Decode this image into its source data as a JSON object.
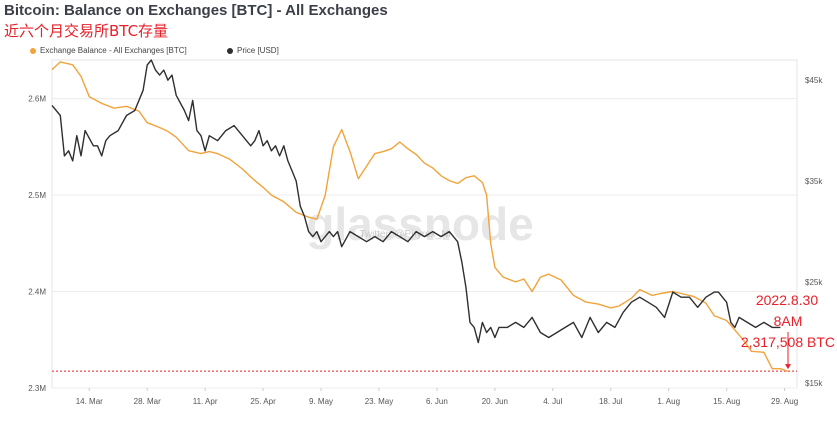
{
  "title": "Bitcoin: Balance on Exchanges [BTC] - All Exchanges",
  "subtitle": "近六个月交易所BTC存量",
  "watermark": "glassnode",
  "watermark_handle": "Twitter: @Phyrex_Ni",
  "annotation": {
    "date": "2022.8.30",
    "time": "8AM",
    "value": "2,317,508 BTC",
    "color": "#e8202a"
  },
  "colors": {
    "balance": "#f2a33a",
    "price": "#2f2f2f",
    "annotation": "#e8202a"
  },
  "chart_data": {
    "type": "line",
    "legend_position": "top-left",
    "x_ticks": [
      "14. Mar",
      "28. Mar",
      "11. Apr",
      "25. Apr",
      "9. May",
      "23. May",
      "6. Jun",
      "20. Jun",
      "4. Jul",
      "18. Jul",
      "1. Aug",
      "15. Aug",
      "29. Aug"
    ],
    "x_tick_positions": [
      9,
      23,
      37,
      51,
      65,
      79,
      93,
      107,
      121,
      135,
      149,
      163,
      177
    ],
    "x_range": [
      0,
      180
    ],
    "y_left": {
      "ticks": [
        "2.3M",
        "2.4M",
        "2.5M",
        "2.6M"
      ],
      "values": [
        2.3,
        2.4,
        2.5,
        2.6
      ],
      "range": [
        2.3,
        2.64
      ],
      "unit": "M BTC"
    },
    "y_right": {
      "ticks": [
        "$15k",
        "$25k",
        "$35k",
        "$45k"
      ],
      "values": [
        15,
        25,
        35,
        45
      ],
      "range": [
        14.5,
        47
      ],
      "unit": "k USD"
    },
    "series": [
      {
        "name": "Exchange Balance - All Exchanges [BTC]",
        "axis": "left",
        "points": [
          [
            0,
            2.63
          ],
          [
            2,
            2.638
          ],
          [
            5,
            2.635
          ],
          [
            7,
            2.623
          ],
          [
            9,
            2.602
          ],
          [
            12,
            2.595
          ],
          [
            15,
            2.59
          ],
          [
            18,
            2.592
          ],
          [
            21,
            2.587
          ],
          [
            23,
            2.575
          ],
          [
            26,
            2.57
          ],
          [
            28,
            2.566
          ],
          [
            30,
            2.56
          ],
          [
            33,
            2.546
          ],
          [
            36,
            2.543
          ],
          [
            38,
            2.545
          ],
          [
            40,
            2.543
          ],
          [
            43,
            2.537
          ],
          [
            46,
            2.527
          ],
          [
            49,
            2.515
          ],
          [
            51,
            2.508
          ],
          [
            53,
            2.5
          ],
          [
            56,
            2.493
          ],
          [
            59,
            2.482
          ],
          [
            62,
            2.477
          ],
          [
            64,
            2.475
          ],
          [
            66,
            2.5
          ],
          [
            68,
            2.55
          ],
          [
            70,
            2.568
          ],
          [
            72,
            2.545
          ],
          [
            74,
            2.517
          ],
          [
            76,
            2.53
          ],
          [
            78,
            2.543
          ],
          [
            80,
            2.545
          ],
          [
            82,
            2.548
          ],
          [
            84,
            2.555
          ],
          [
            86,
            2.548
          ],
          [
            88,
            2.542
          ],
          [
            90,
            2.533
          ],
          [
            92,
            2.528
          ],
          [
            94,
            2.52
          ],
          [
            96,
            2.515
          ],
          [
            98,
            2.512
          ],
          [
            100,
            2.518
          ],
          [
            102,
            2.52
          ],
          [
            104,
            2.513
          ],
          [
            105,
            2.5
          ],
          [
            106,
            2.45
          ],
          [
            107,
            2.425
          ],
          [
            109,
            2.415
          ],
          [
            112,
            2.41
          ],
          [
            114,
            2.413
          ],
          [
            116,
            2.4
          ],
          [
            118,
            2.415
          ],
          [
            120,
            2.418
          ],
          [
            123,
            2.412
          ],
          [
            126,
            2.396
          ],
          [
            129,
            2.389
          ],
          [
            132,
            2.387
          ],
          [
            135,
            2.383
          ],
          [
            137,
            2.385
          ],
          [
            140,
            2.393
          ],
          [
            142,
            2.402
          ],
          [
            145,
            2.396
          ],
          [
            147,
            2.398
          ],
          [
            150,
            2.4
          ],
          [
            152,
            2.398
          ],
          [
            155,
            2.395
          ],
          [
            158,
            2.388
          ],
          [
            160,
            2.375
          ],
          [
            163,
            2.37
          ],
          [
            165,
            2.36
          ],
          [
            167,
            2.35
          ],
          [
            169,
            2.338
          ],
          [
            172,
            2.337
          ],
          [
            174,
            2.32
          ],
          [
            176,
            2.32
          ],
          [
            178,
            2.317
          ]
        ]
      },
      {
        "name": "Price [USD]",
        "axis": "right",
        "points": [
          [
            0,
            42.5
          ],
          [
            2,
            41.5
          ],
          [
            3,
            37.5
          ],
          [
            4,
            38
          ],
          [
            5,
            37
          ],
          [
            6,
            39.5
          ],
          [
            7,
            37.5
          ],
          [
            8,
            40
          ],
          [
            10,
            38.5
          ],
          [
            11,
            38.5
          ],
          [
            12,
            37.5
          ],
          [
            13,
            39
          ],
          [
            14,
            39.5
          ],
          [
            16,
            40
          ],
          [
            18,
            41.5
          ],
          [
            20,
            42
          ],
          [
            22,
            44
          ],
          [
            23,
            46.5
          ],
          [
            24,
            47
          ],
          [
            25,
            46
          ],
          [
            26,
            45.5
          ],
          [
            27,
            46
          ],
          [
            28,
            45
          ],
          [
            29,
            45.5
          ],
          [
            30,
            43.5
          ],
          [
            32,
            42
          ],
          [
            33,
            41
          ],
          [
            34,
            43
          ],
          [
            35,
            40
          ],
          [
            36,
            39.5
          ],
          [
            37,
            38
          ],
          [
            38,
            39.5
          ],
          [
            40,
            39
          ],
          [
            42,
            40
          ],
          [
            44,
            40.5
          ],
          [
            46,
            39.5
          ],
          [
            48,
            38.5
          ],
          [
            49,
            39
          ],
          [
            50,
            40
          ],
          [
            51,
            38.5
          ],
          [
            52,
            39
          ],
          [
            53,
            38
          ],
          [
            54,
            38.5
          ],
          [
            55,
            37.5
          ],
          [
            56,
            38.5
          ],
          [
            57,
            37
          ],
          [
            58,
            36
          ],
          [
            59,
            35
          ],
          [
            60,
            32.5
          ],
          [
            61,
            31.5
          ],
          [
            62,
            30
          ],
          [
            63,
            29.5
          ],
          [
            64,
            30
          ],
          [
            65,
            29
          ],
          [
            66,
            29.5
          ],
          [
            67,
            30
          ],
          [
            68,
            29.5
          ],
          [
            69,
            30
          ],
          [
            70,
            28.5
          ],
          [
            72,
            30
          ],
          [
            74,
            29.5
          ],
          [
            76,
            29
          ],
          [
            78,
            29.5
          ],
          [
            80,
            29
          ],
          [
            82,
            30
          ],
          [
            84,
            29.5
          ],
          [
            86,
            29
          ],
          [
            88,
            30
          ],
          [
            90,
            29.5
          ],
          [
            92,
            30
          ],
          [
            94,
            29.5
          ],
          [
            96,
            30
          ],
          [
            98,
            29
          ],
          [
            99,
            27
          ],
          [
            100,
            24.5
          ],
          [
            101,
            21
          ],
          [
            102,
            20.5
          ],
          [
            103,
            19
          ],
          [
            104,
            21
          ],
          [
            105,
            20
          ],
          [
            106,
            20.5
          ],
          [
            107,
            19.5
          ],
          [
            108,
            20.5
          ],
          [
            110,
            20.5
          ],
          [
            112,
            21
          ],
          [
            114,
            20.5
          ],
          [
            116,
            21.5
          ],
          [
            118,
            20
          ],
          [
            120,
            19.5
          ],
          [
            122,
            20
          ],
          [
            124,
            20.5
          ],
          [
            126,
            21
          ],
          [
            128,
            19.5
          ],
          [
            130,
            21.5
          ],
          [
            132,
            20
          ],
          [
            134,
            21
          ],
          [
            136,
            20.5
          ],
          [
            138,
            22
          ],
          [
            140,
            23
          ],
          [
            142,
            23.5
          ],
          [
            144,
            23
          ],
          [
            146,
            22.5
          ],
          [
            148,
            21.5
          ],
          [
            150,
            24
          ],
          [
            152,
            23.5
          ],
          [
            154,
            23.5
          ],
          [
            156,
            22.5
          ],
          [
            158,
            23.5
          ],
          [
            160,
            24
          ],
          [
            161,
            24
          ],
          [
            162,
            23.5
          ],
          [
            163,
            23
          ],
          [
            164,
            21
          ],
          [
            165,
            20.5
          ],
          [
            166,
            21.5
          ],
          [
            168,
            21
          ],
          [
            170,
            20.5
          ],
          [
            172,
            21
          ],
          [
            174,
            20.5
          ],
          [
            176,
            20.5
          ]
        ]
      }
    ],
    "threshold_line": {
      "axis": "left",
      "value": 2.3175,
      "style": "dotted",
      "color": "#e8202a"
    }
  }
}
